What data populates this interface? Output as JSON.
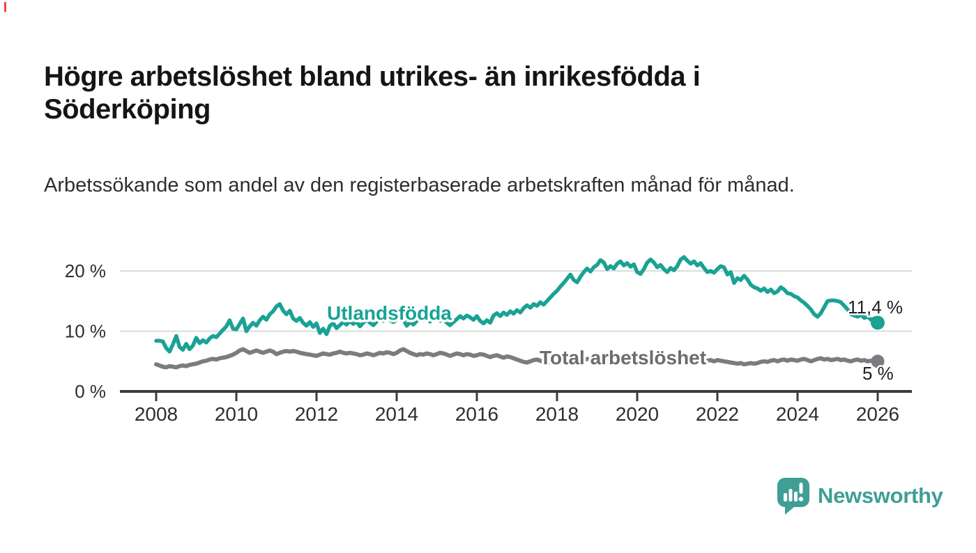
{
  "header": {
    "title": "Högre arbetslöshet bland utrikes- än inrikesfödda i Söderköping",
    "subtitle": "Arbetssökande som andel av den registerbaserade arbetskraften månad för månad."
  },
  "chart_data": {
    "type": "line",
    "title": "Högre arbetslöshet bland utrikes- än inrikesfödda i Söderköping",
    "x_unit": "year, monthly resolution",
    "x_start_year": 2008,
    "points_per_year": 12,
    "x_ticks": [
      "2008",
      "2010",
      "2012",
      "2014",
      "2016",
      "2018",
      "2020",
      "2022",
      "2024",
      "2026"
    ],
    "y_ticks": [
      {
        "value": 0,
        "label": "0 %"
      },
      {
        "value": 10,
        "label": "10 %"
      },
      {
        "value": 20,
        "label": "20 %"
      }
    ],
    "ylim": [
      0,
      23.5
    ],
    "grid": "horizontal",
    "axis_color": "#3B3B3B",
    "grid_color": "#DCDCDC",
    "series": [
      {
        "name": "Utlandsfödda",
        "color": "#1AA294",
        "end_label": "11,4 %",
        "last_value": 11.4,
        "values": [
          8.4,
          8.4,
          8.3,
          7.2,
          6.6,
          7.8,
          9.2,
          7.4,
          6.9,
          7.9,
          7.0,
          7.6,
          8.9,
          8.0,
          8.5,
          8.1,
          8.8,
          9.2,
          9.0,
          9.6,
          10.2,
          10.8,
          11.8,
          10.4,
          10.3,
          11.2,
          12.1,
          10.0,
          10.8,
          11.4,
          10.9,
          11.8,
          12.4,
          11.9,
          12.8,
          13.3,
          14.1,
          14.5,
          13.4,
          12.8,
          13.4,
          12.1,
          11.7,
          12.2,
          11.4,
          10.9,
          11.5,
          10.7,
          11.3,
          9.7,
          10.4,
          9.5,
          10.9,
          11.3,
          10.5,
          11.0,
          11.5,
          11.1,
          11.7,
          11.2,
          11.6,
          10.8,
          11.4,
          11.9,
          11.4,
          11.0,
          11.6,
          12.1,
          11.7,
          12.2,
          11.8,
          11.5,
          11.9,
          12.4,
          11.9,
          10.9,
          11.5,
          11.1,
          11.7,
          12.2,
          11.8,
          12.1,
          11.6,
          12.0,
          12.2,
          11.7,
          12.1,
          11.4,
          11.0,
          11.5,
          12.0,
          12.5,
          12.1,
          12.6,
          12.3,
          11.9,
          12.5,
          11.7,
          11.3,
          11.8,
          11.4,
          12.6,
          13.0,
          12.5,
          13.1,
          12.7,
          13.3,
          12.9,
          13.5,
          13.1,
          13.8,
          14.3,
          13.9,
          14.5,
          14.2,
          14.8,
          14.4,
          15.0,
          15.6,
          16.2,
          16.7,
          17.4,
          18.0,
          18.7,
          19.4,
          18.5,
          18.1,
          19.0,
          19.8,
          20.4,
          19.9,
          20.6,
          21.0,
          21.8,
          21.4,
          20.3,
          20.8,
          20.4,
          21.2,
          21.6,
          20.9,
          21.3,
          20.7,
          21.1,
          19.8,
          19.5,
          20.3,
          21.4,
          21.9,
          21.4,
          20.6,
          21.0,
          20.3,
          19.8,
          20.5,
          20.1,
          20.8,
          21.9,
          22.3,
          21.7,
          21.2,
          21.6,
          20.9,
          21.3,
          20.5,
          19.8,
          20.0,
          19.7,
          20.3,
          20.8,
          20.6,
          19.4,
          19.8,
          18.0,
          18.8,
          18.5,
          19.2,
          18.6,
          17.7,
          17.3,
          17.1,
          16.7,
          17.1,
          16.5,
          16.9,
          16.3,
          16.6,
          17.3,
          16.9,
          16.3,
          16.2,
          15.8,
          15.6,
          15.1,
          14.7,
          14.2,
          13.6,
          12.8,
          12.4,
          13.0,
          14.0,
          15.0,
          15.1,
          15.1,
          15.0,
          14.8,
          14.2,
          13.6,
          12.8,
          12.6,
          12.4,
          12.7,
          12.2,
          12.4,
          11.9,
          12.1,
          11.4
        ]
      },
      {
        "name": "Total arbetslöshet",
        "color": "#7C7C80",
        "end_label": "5 %",
        "last_value": 5.0,
        "values": [
          4.5,
          4.3,
          4.1,
          4.0,
          4.2,
          4.1,
          4.0,
          4.2,
          4.3,
          4.2,
          4.4,
          4.5,
          4.6,
          4.8,
          5.0,
          5.1,
          5.3,
          5.4,
          5.3,
          5.5,
          5.6,
          5.7,
          5.9,
          6.1,
          6.4,
          6.8,
          7.0,
          6.7,
          6.4,
          6.6,
          6.8,
          6.6,
          6.4,
          6.6,
          6.8,
          6.6,
          6.2,
          6.4,
          6.6,
          6.7,
          6.6,
          6.7,
          6.6,
          6.4,
          6.3,
          6.2,
          6.1,
          6.0,
          5.9,
          6.1,
          6.3,
          6.2,
          6.1,
          6.3,
          6.4,
          6.6,
          6.4,
          6.3,
          6.4,
          6.3,
          6.2,
          6.0,
          6.1,
          6.3,
          6.2,
          6.0,
          6.2,
          6.4,
          6.3,
          6.5,
          6.4,
          6.2,
          6.4,
          6.8,
          7.0,
          6.7,
          6.4,
          6.2,
          6.0,
          6.2,
          6.1,
          6.3,
          6.2,
          6.0,
          6.2,
          6.4,
          6.3,
          6.1,
          5.9,
          6.1,
          6.3,
          6.2,
          6.0,
          6.2,
          6.1,
          5.9,
          6.0,
          6.2,
          6.1,
          5.9,
          5.7,
          5.9,
          6.0,
          5.8,
          5.6,
          5.8,
          5.7,
          5.5,
          5.3,
          5.1,
          4.9,
          4.8,
          5.0,
          5.2,
          5.3,
          5.1,
          4.9,
          5.0,
          4.8,
          4.7,
          4.9,
          5.1,
          5.2,
          5.0,
          5.2,
          5.4,
          5.3,
          5.1,
          5.2,
          5.4,
          5.3,
          5.2,
          5.3,
          5.4,
          5.2,
          5.1,
          5.3,
          5.5,
          5.4,
          5.2,
          5.4,
          5.5,
          5.3,
          5.4,
          5.5,
          5.7,
          5.9,
          6.0,
          5.9,
          5.8,
          5.6,
          5.7,
          5.5,
          5.4,
          5.5,
          5.3,
          5.4,
          5.5,
          5.3,
          5.2,
          5.4,
          5.5,
          5.3,
          5.2,
          5.0,
          5.1,
          5.2,
          5.0,
          5.2,
          5.1,
          5.0,
          4.9,
          4.8,
          4.7,
          4.6,
          4.7,
          4.5,
          4.6,
          4.7,
          4.6,
          4.7,
          4.9,
          5.0,
          4.9,
          5.1,
          5.2,
          5.0,
          5.2,
          5.3,
          5.1,
          5.3,
          5.2,
          5.1,
          5.3,
          5.4,
          5.2,
          5.0,
          5.2,
          5.4,
          5.5,
          5.3,
          5.4,
          5.2,
          5.3,
          5.4,
          5.2,
          5.3,
          5.1,
          5.0,
          5.2,
          5.3,
          5.1,
          5.2,
          5.0,
          5.1,
          5.0,
          5.0
        ]
      }
    ]
  },
  "branding": {
    "logo_text": "Newsworthy",
    "logo_color": "#3F9E96"
  }
}
